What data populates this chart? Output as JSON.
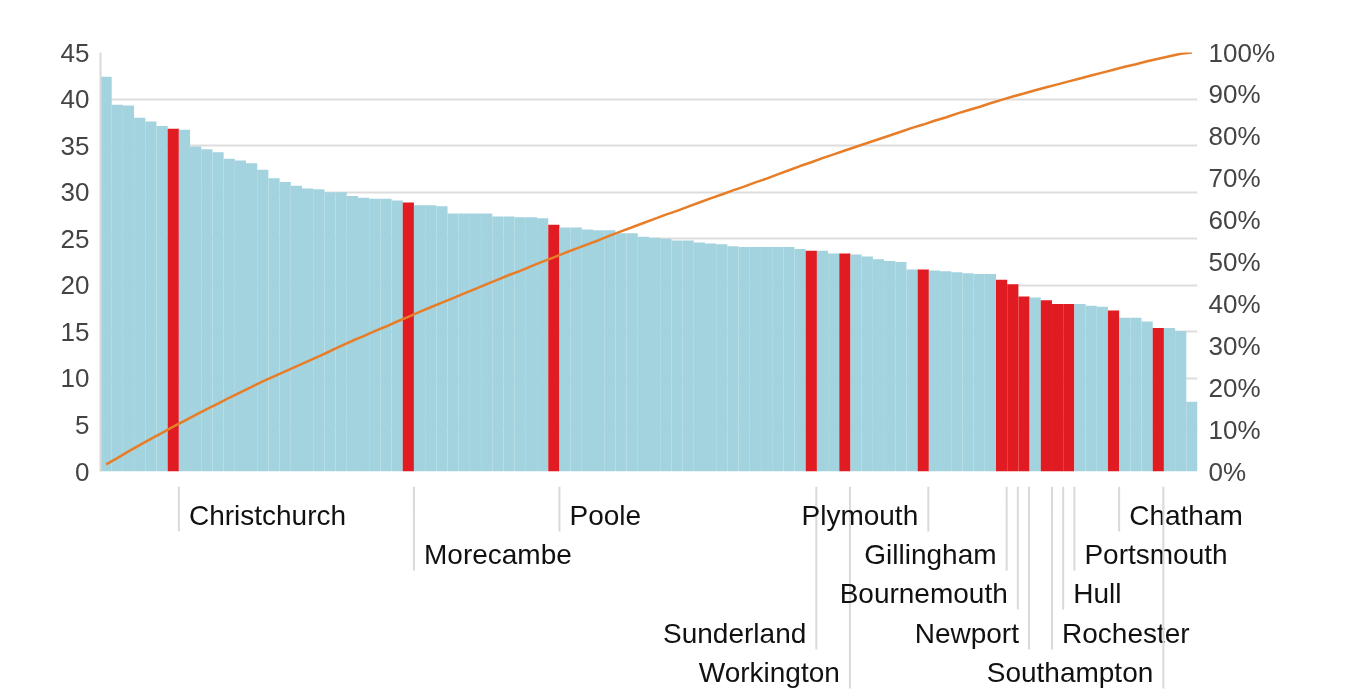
{
  "chart_data": {
    "type": "bar",
    "categories": [
      null,
      null,
      null,
      null,
      null,
      null,
      null,
      null,
      null,
      null,
      null,
      null,
      null,
      null,
      null,
      null,
      null,
      null,
      null,
      null,
      null,
      null,
      null,
      null,
      null,
      null,
      null,
      null,
      null,
      null,
      null,
      null,
      null,
      null,
      null,
      null,
      null,
      null,
      null,
      null,
      null,
      null,
      null,
      null,
      null,
      null,
      null,
      null,
      null,
      null,
      null,
      null,
      null,
      null,
      null,
      null,
      null,
      null,
      null,
      null,
      null,
      null,
      null,
      null,
      null,
      null,
      null,
      null,
      null,
      null,
      null,
      null,
      null,
      null,
      null,
      null,
      null,
      null,
      null,
      null,
      null,
      null,
      null,
      null,
      null,
      null,
      null,
      null,
      null,
      null,
      null,
      null,
      null,
      null,
      null,
      null,
      null,
      null
    ],
    "annotations": [
      "Christchurch",
      "Morecambe",
      "Poole",
      "Sunderland",
      "Workington",
      "Plymouth",
      "Gillingham",
      "Bournemouth",
      "Newport",
      "Rochester",
      "Hull",
      "Portsmouth",
      "Chatham",
      "Southampton"
    ],
    "series": [
      {
        "type": "bar",
        "color": "#a3d3de",
        "values": [
          42.4,
          39.4,
          39.3,
          38.0,
          37.6,
          37.1,
          36.8,
          36.7,
          34.9,
          34.6,
          34.3,
          33.6,
          33.4,
          33.1,
          32.4,
          31.5,
          31.1,
          30.7,
          30.4,
          30.3,
          30.0,
          30.0,
          29.6,
          29.4,
          29.3,
          29.3,
          29.1,
          28.9,
          28.6,
          28.6,
          28.5,
          27.7,
          27.7,
          27.7,
          27.7,
          27.4,
          27.4,
          27.3,
          27.3,
          27.2,
          26.5,
          26.2,
          26.2,
          26.0,
          25.9,
          25.9,
          25.6,
          25.6,
          25.2,
          25.1,
          25.0,
          24.8,
          24.8,
          24.6,
          24.5,
          24.4,
          24.2,
          24.1,
          24.1,
          24.1,
          24.1,
          24.1,
          23.9,
          23.7,
          23.7,
          23.4,
          23.4,
          23.3,
          23.1,
          22.8,
          22.6,
          22.5,
          21.7,
          21.7,
          21.6,
          21.5,
          21.4,
          21.3,
          21.2,
          21.2,
          20.6,
          20.1,
          18.8,
          18.7,
          18.4,
          18.0,
          18.0,
          18.0,
          17.8,
          17.7,
          17.3,
          16.5,
          16.5,
          16.1,
          15.4,
          15.4,
          15.1,
          7.5
        ],
        "colors": [
          "#a3d3de",
          "#a3d3de",
          "#a3d3de",
          "#a3d3de",
          "#a3d3de",
          "#a3d3de",
          "#e11b22",
          "#a3d3de",
          "#a3d3de",
          "#a3d3de",
          "#a3d3de",
          "#a3d3de",
          "#a3d3de",
          "#a3d3de",
          "#a3d3de",
          "#a3d3de",
          "#a3d3de",
          "#a3d3de",
          "#a3d3de",
          "#a3d3de",
          "#a3d3de",
          "#a3d3de",
          "#a3d3de",
          "#a3d3de",
          "#a3d3de",
          "#a3d3de",
          "#a3d3de",
          "#e11b22",
          "#a3d3de",
          "#a3d3de",
          "#a3d3de",
          "#a3d3de",
          "#a3d3de",
          "#a3d3de",
          "#a3d3de",
          "#a3d3de",
          "#a3d3de",
          "#a3d3de",
          "#a3d3de",
          "#a3d3de",
          "#e11b22",
          "#a3d3de",
          "#a3d3de",
          "#a3d3de",
          "#a3d3de",
          "#a3d3de",
          "#a3d3de",
          "#a3d3de",
          "#a3d3de",
          "#a3d3de",
          "#a3d3de",
          "#a3d3de",
          "#a3d3de",
          "#a3d3de",
          "#a3d3de",
          "#a3d3de",
          "#a3d3de",
          "#a3d3de",
          "#a3d3de",
          "#a3d3de",
          "#a3d3de",
          "#a3d3de",
          "#a3d3de",
          "#e11b22",
          "#a3d3de",
          "#a3d3de",
          "#e11b22",
          "#a3d3de",
          "#a3d3de",
          "#a3d3de",
          "#a3d3de",
          "#a3d3de",
          "#a3d3de",
          "#e11b22",
          "#a3d3de",
          "#a3d3de",
          "#a3d3de",
          "#a3d3de",
          "#a3d3de",
          "#a3d3de",
          "#e11b22",
          "#e11b22",
          "#e11b22",
          "#a3d3de",
          "#e11b22",
          "#e11b22",
          "#e11b22",
          "#a3d3de",
          "#a3d3de",
          "#a3d3de",
          "#e11b22",
          "#a3d3de",
          "#a3d3de",
          "#a3d3de",
          "#e11b22",
          "#a3d3de",
          "#a3d3de",
          "#a3d3de"
        ]
      },
      {
        "type": "line",
        "axis": "y2",
        "color": "#e87d27",
        "values": [
          1.7,
          3.2,
          4.8,
          6.3,
          7.8,
          9.2,
          10.7,
          12.1,
          13.5,
          14.9,
          16.2,
          17.6,
          18.9,
          20.2,
          21.5,
          22.7,
          23.9,
          25.1,
          26.3,
          27.5,
          28.7,
          30.0,
          31.2,
          32.3,
          33.5,
          34.6,
          35.8,
          36.9,
          38.1,
          39.2,
          40.3,
          41.4,
          42.5,
          43.6,
          44.7,
          45.8,
          46.9,
          47.9,
          49.0,
          50.1,
          51.1,
          52.2,
          53.2,
          54.2,
          55.2,
          56.3,
          57.3,
          58.3,
          59.3,
          60.3,
          61.3,
          62.2,
          63.2,
          64.2,
          65.2,
          66.1,
          67.1,
          68.0,
          69.0,
          69.9,
          70.9,
          71.9,
          72.9,
          73.8,
          74.8,
          75.7,
          76.6,
          77.5,
          78.4,
          79.3,
          80.2,
          81.1,
          82.0,
          82.8,
          83.7,
          84.5,
          85.4,
          86.2,
          87.0,
          87.9,
          88.7,
          89.5,
          90.2,
          91.0,
          91.7,
          92.4,
          93.1,
          93.8,
          94.5,
          95.2,
          95.9,
          96.6,
          97.2,
          97.9,
          98.5,
          99.1,
          99.7,
          100.0
        ]
      }
    ],
    "ylim": [
      0,
      45
    ],
    "yticks": [
      0,
      5,
      10,
      15,
      20,
      25,
      30,
      35,
      40,
      45
    ],
    "y2lim": [
      0,
      100
    ],
    "y2ticks": [
      {
        "value": 0,
        "label": "0%"
      },
      {
        "value": 10,
        "label": "10%"
      },
      {
        "value": 20,
        "label": "20%"
      },
      {
        "value": 30,
        "label": "30%"
      },
      {
        "value": 40,
        "label": "40%"
      },
      {
        "value": 50,
        "label": "50%"
      },
      {
        "value": 60,
        "label": "60%"
      },
      {
        "value": 70,
        "label": "70%"
      },
      {
        "value": 80,
        "label": "80%"
      },
      {
        "value": 90,
        "label": "90%"
      },
      {
        "value": 100,
        "label": "100%"
      }
    ],
    "grid": "y"
  }
}
